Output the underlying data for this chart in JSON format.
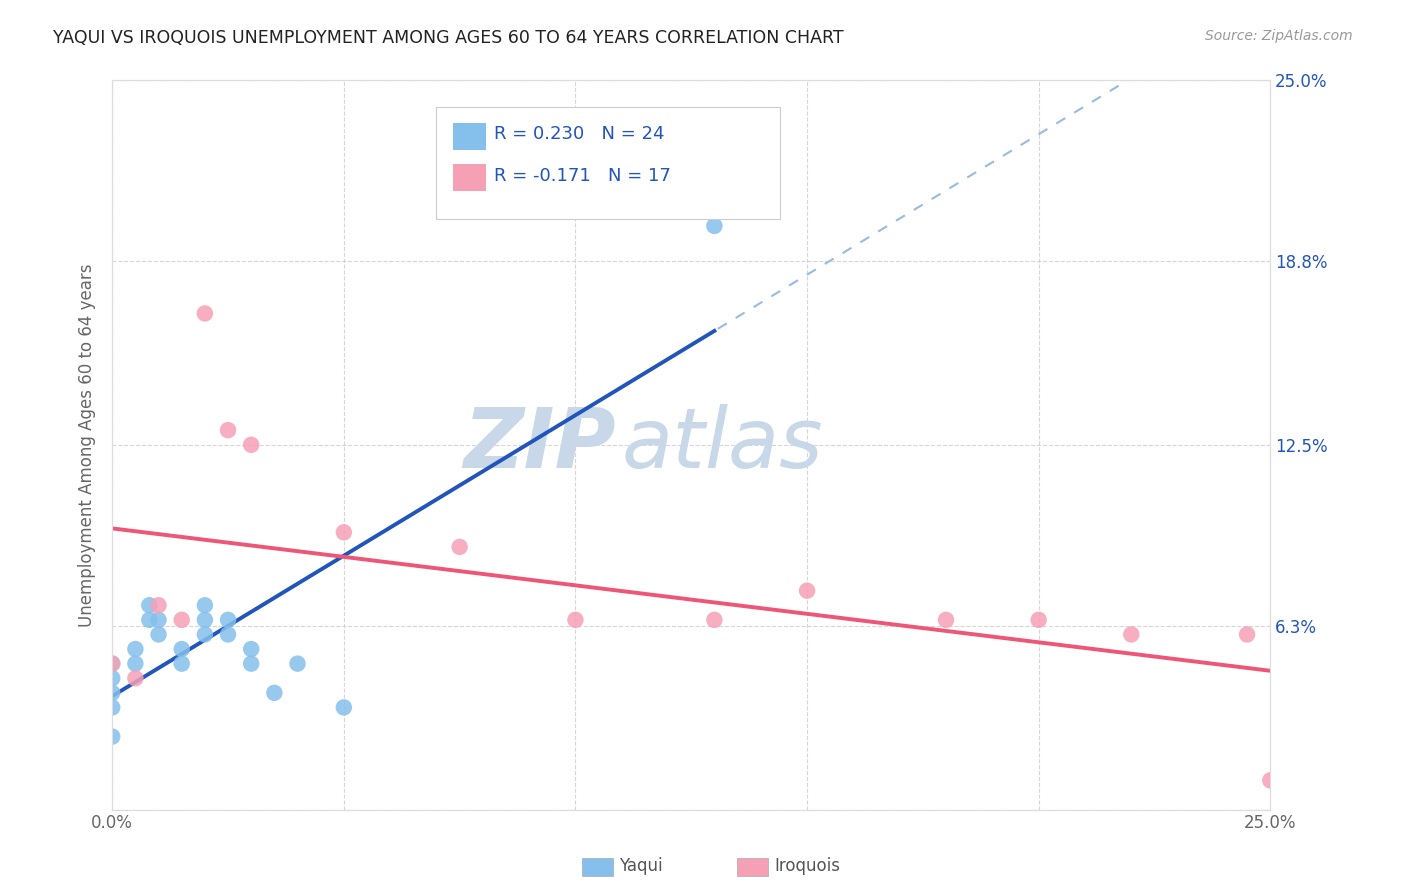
{
  "title": "YAQUI VS IROQUOIS UNEMPLOYMENT AMONG AGES 60 TO 64 YEARS CORRELATION CHART",
  "source": "Source: ZipAtlas.com",
  "ylabel": "Unemployment Among Ages 60 to 64 years",
  "xlim": [
    0.0,
    0.25
  ],
  "ylim": [
    0.0,
    0.25
  ],
  "ytick_vals": [
    0.0,
    0.063,
    0.125,
    0.188,
    0.25
  ],
  "ytick_labels": [
    "",
    "6.3%",
    "12.5%",
    "18.8%",
    "25.0%"
  ],
  "yaqui_color": "#85BFEC",
  "iroquois_color": "#F5A0B5",
  "yaqui_line_color": "#2255BB",
  "iroquois_line_color": "#EE5577",
  "trend_dash_color": "#99BBDD",
  "background_color": "#FFFFFF",
  "grid_color": "#CCCCCC",
  "legend_r_yaqui": "R = 0.230",
  "legend_n_yaqui": "N = 24",
  "legend_r_iroquois": "R = -0.171",
  "legend_n_iroquois": "N = 17",
  "yaqui_x": [
    0.0,
    0.0,
    0.0,
    0.0,
    0.0,
    0.005,
    0.005,
    0.008,
    0.008,
    0.01,
    0.01,
    0.015,
    0.015,
    0.02,
    0.02,
    0.02,
    0.025,
    0.025,
    0.03,
    0.03,
    0.035,
    0.04,
    0.05,
    0.13
  ],
  "yaqui_y": [
    0.05,
    0.045,
    0.04,
    0.035,
    0.025,
    0.055,
    0.05,
    0.07,
    0.065,
    0.065,
    0.06,
    0.055,
    0.05,
    0.07,
    0.065,
    0.06,
    0.065,
    0.06,
    0.055,
    0.05,
    0.04,
    0.05,
    0.035,
    0.2
  ],
  "iroquois_x": [
    0.0,
    0.005,
    0.01,
    0.015,
    0.02,
    0.025,
    0.03,
    0.05,
    0.075,
    0.1,
    0.13,
    0.15,
    0.18,
    0.2,
    0.22,
    0.245,
    0.25
  ],
  "iroquois_y": [
    0.05,
    0.045,
    0.07,
    0.065,
    0.17,
    0.13,
    0.125,
    0.095,
    0.09,
    0.065,
    0.065,
    0.075,
    0.065,
    0.065,
    0.06,
    0.06,
    0.01
  ],
  "watermark_zip": "ZIP",
  "watermark_atlas": "atlas",
  "watermark_color": "#C8D8E8"
}
